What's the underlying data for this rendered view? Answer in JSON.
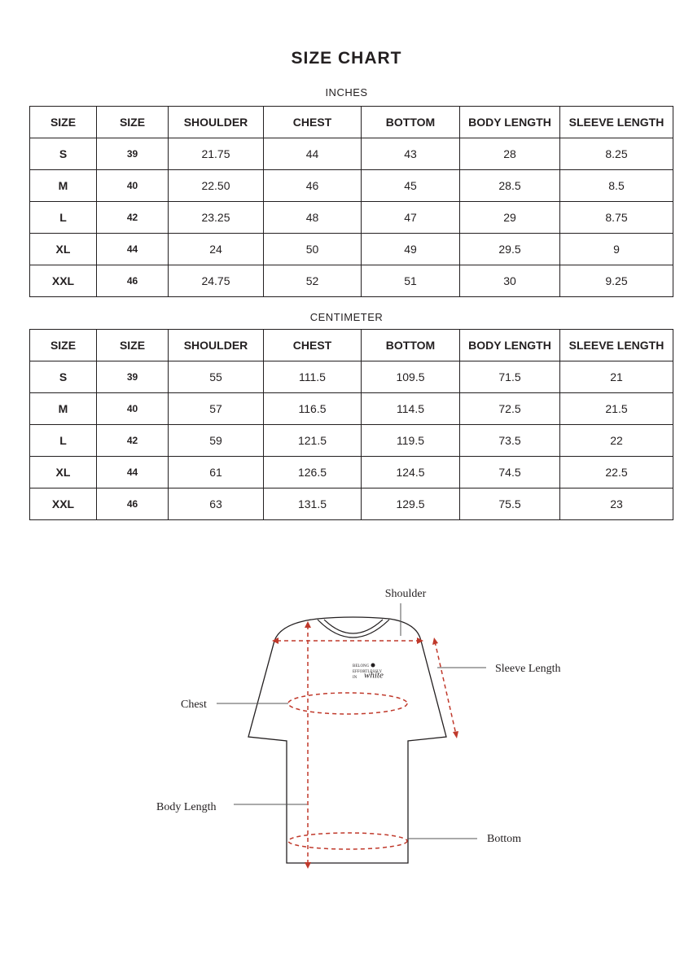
{
  "title": "SIZE CHART",
  "tables": [
    {
      "caption": "INCHES",
      "headers": [
        "SIZE",
        "SIZE",
        "SHOULDER",
        "CHEST",
        "BOTTOM",
        "BODY LENGTH",
        "SLEEVE LENGTH"
      ],
      "rows": [
        [
          "S",
          "39",
          "21.75",
          "44",
          "43",
          "28",
          "8.25"
        ],
        [
          "M",
          "40",
          "22.50",
          "46",
          "45",
          "28.5",
          "8.5"
        ],
        [
          "L",
          "42",
          "23.25",
          "48",
          "47",
          "29",
          "8.75"
        ],
        [
          "XL",
          "44",
          "24",
          "50",
          "49",
          "29.5",
          "9"
        ],
        [
          "XXL",
          "46",
          "24.75",
          "52",
          "51",
          "30",
          "9.25"
        ]
      ]
    },
    {
      "caption": "CENTIMETER",
      "headers": [
        "SIZE",
        "SIZE",
        "SHOULDER",
        "CHEST",
        "BOTTOM",
        "BODY LENGTH",
        "SLEEVE LENGTH"
      ],
      "rows": [
        [
          "S",
          "39",
          "55",
          "111.5",
          "109.5",
          "71.5",
          "21"
        ],
        [
          "M",
          "40",
          "57",
          "116.5",
          "114.5",
          "72.5",
          "21.5"
        ],
        [
          "L",
          "42",
          "59",
          "121.5",
          "119.5",
          "73.5",
          "22"
        ],
        [
          "XL",
          "44",
          "61",
          "126.5",
          "124.5",
          "74.5",
          "22.5"
        ],
        [
          "XXL",
          "46",
          "63",
          "131.5",
          "129.5",
          "75.5",
          "23"
        ]
      ]
    }
  ],
  "diagram": {
    "labels": {
      "shoulder": "Shoulder",
      "sleeve_length": "Sleeve Length",
      "chest": "Chest",
      "body_length": "Body Length",
      "bottom": "Bottom"
    },
    "logo": [
      "BELONG",
      "EFFORTLESSLY",
      "IN",
      "white"
    ]
  }
}
